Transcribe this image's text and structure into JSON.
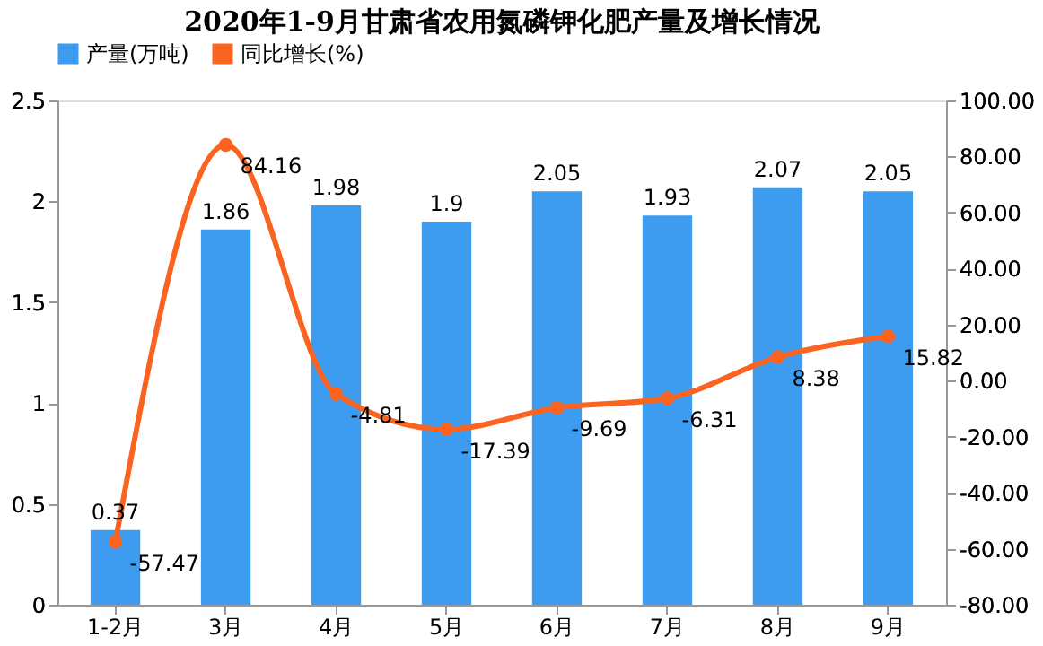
{
  "chart_data": {
    "type": "bar",
    "title": "2020年1-9月甘肃省农用氮磷钾化肥产量及增长情况",
    "categories": [
      "1-2月",
      "3月",
      "4月",
      "5月",
      "6月",
      "7月",
      "8月",
      "9月"
    ],
    "series": [
      {
        "name": "产量(万吨)",
        "color": "#3d9cf0",
        "values": [
          0.37,
          1.86,
          1.98,
          1.9,
          2.05,
          1.93,
          2.07,
          2.05
        ]
      },
      {
        "name": "同比增长(%)",
        "type": "line",
        "axis": "y2",
        "color": "#fa6420",
        "marker": "circle",
        "values": [
          -57.47,
          84.16,
          -4.81,
          -17.39,
          -9.69,
          -6.31,
          8.38,
          15.82
        ]
      }
    ],
    "ylim": [
      0,
      2.5
    ],
    "yticks": [
      0,
      0.5,
      1,
      1.5,
      2,
      2.5
    ],
    "y2lim": [
      -80,
      100
    ],
    "y2ticks": [
      {
        "value": -80,
        "label": "-80.00"
      },
      {
        "value": -60,
        "label": "-60.00"
      },
      {
        "value": -40,
        "label": "-40.00"
      },
      {
        "value": -20,
        "label": "-20.00"
      },
      {
        "value": 0,
        "label": "0.00"
      },
      {
        "value": 20,
        "label": "20.00"
      },
      {
        "value": 40,
        "label": "40.00"
      },
      {
        "value": 60,
        "label": "60.00"
      },
      {
        "value": 80,
        "label": "80.00"
      },
      {
        "value": 100,
        "label": "100.00"
      }
    ],
    "data_labels": true,
    "legend": "top",
    "grid": false
  }
}
